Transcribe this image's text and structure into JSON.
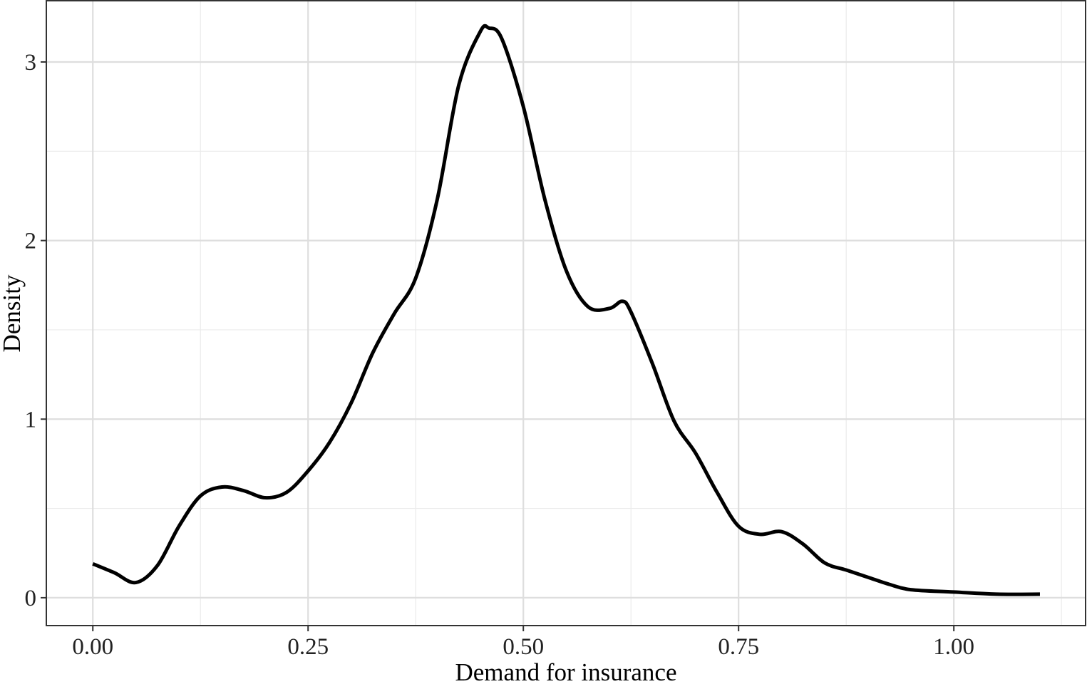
{
  "chart_data": {
    "type": "line",
    "xlabel": "Demand for insurance",
    "ylabel": "Density",
    "x": [
      0,
      0.025,
      0.05,
      0.075,
      0.1,
      0.125,
      0.15,
      0.175,
      0.2,
      0.225,
      0.25,
      0.275,
      0.3,
      0.325,
      0.35,
      0.375,
      0.4,
      0.425,
      0.45,
      0.46,
      0.475,
      0.5,
      0.525,
      0.55,
      0.575,
      0.6,
      0.615,
      0.625,
      0.65,
      0.675,
      0.7,
      0.725,
      0.75,
      0.775,
      0.8,
      0.825,
      0.85,
      0.875,
      0.9,
      0.925,
      0.95,
      1.0,
      1.05,
      1.1
    ],
    "series": [
      {
        "color": "#000000",
        "values": [
          0.19,
          0.14,
          0.085,
          0.18,
          0.4,
          0.57,
          0.62,
          0.6,
          0.56,
          0.59,
          0.71,
          0.87,
          1.09,
          1.37,
          1.59,
          1.79,
          2.23,
          2.87,
          3.17,
          3.19,
          3.13,
          2.75,
          2.23,
          1.83,
          1.63,
          1.62,
          1.66,
          1.6,
          1.31,
          0.99,
          0.81,
          0.59,
          0.4,
          0.355,
          0.37,
          0.3,
          0.195,
          0.155,
          0.115,
          0.075,
          0.045,
          0.032,
          0.02,
          0.02
        ]
      }
    ],
    "xlim": [
      -0.054,
      1.153
    ],
    "ylim": [
      -0.156,
      3.343
    ],
    "xticks": [
      {
        "value": 0,
        "label": "0.00"
      },
      {
        "value": 0.25,
        "label": "0.25"
      },
      {
        "value": 0.5,
        "label": "0.50"
      },
      {
        "value": 0.75,
        "label": "0.75"
      },
      {
        "value": 1,
        "label": "1.00"
      }
    ],
    "yticks": [
      0,
      1,
      2,
      3
    ],
    "xminorticks": [
      0.125,
      0.375,
      0.625,
      0.875,
      1.125
    ],
    "yminorticks": [
      0.5,
      1.5,
      2.5
    ],
    "grid": true
  }
}
